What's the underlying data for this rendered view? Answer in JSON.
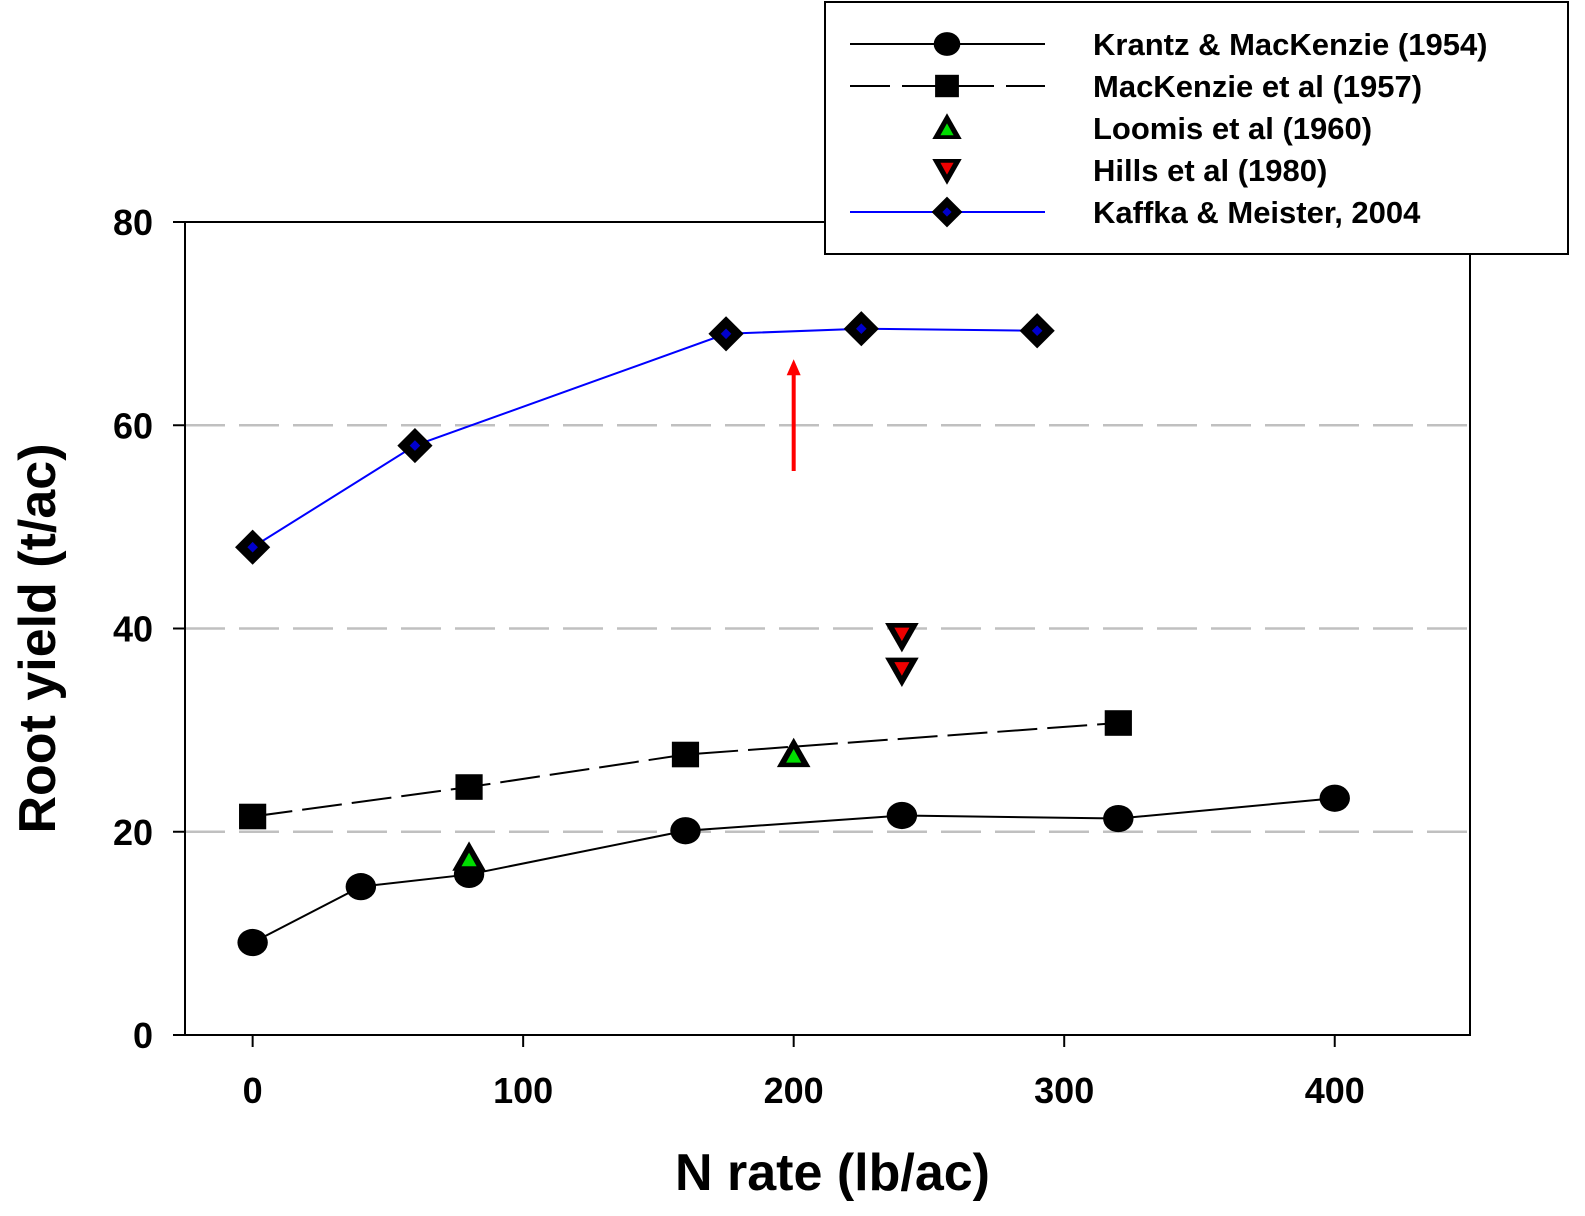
{
  "chart_data": {
    "type": "scatter",
    "xlabel": "N rate (lb/ac)",
    "ylabel": "Root yield (t/ac)",
    "xlim": [
      -25,
      450
    ],
    "ylim": [
      0,
      80
    ],
    "x_ticks": [
      0,
      100,
      200,
      300,
      400
    ],
    "y_ticks": [
      0,
      20,
      40,
      60,
      80
    ],
    "grid": "horizontal dashed",
    "legend_position": "top-right",
    "series": [
      {
        "name": "Krantz & MacKenzie (1954)",
        "marker": "circle",
        "line": "solid",
        "line_color": "#000000",
        "fill": "#000000",
        "points": [
          [
            0,
            9.1
          ],
          [
            40,
            14.6
          ],
          [
            80,
            15.8
          ],
          [
            160,
            20.1
          ],
          [
            240,
            21.6
          ],
          [
            320,
            21.3
          ],
          [
            400,
            23.3
          ]
        ]
      },
      {
        "name": "MacKenzie et al (1957)",
        "marker": "square",
        "line": "dashed",
        "line_color": "#000000",
        "fill": "#000000",
        "points": [
          [
            0,
            21.5
          ],
          [
            80,
            24.4
          ],
          [
            160,
            27.6
          ],
          [
            320,
            30.7
          ]
        ]
      },
      {
        "name": "Loomis et al (1960)",
        "marker": "triangle-up",
        "line": "none",
        "line_color": "#000000",
        "fill": "#00dd00",
        "points": [
          [
            80,
            17.4
          ],
          [
            200,
            27.6
          ]
        ]
      },
      {
        "name": "Hills et al (1980)",
        "marker": "triangle-down",
        "line": "none",
        "line_color": "#000000",
        "fill": "#ee0000",
        "points": [
          [
            240,
            39.3
          ],
          [
            240,
            35.9
          ]
        ]
      },
      {
        "name": "Kaffka & Meister, 2004",
        "marker": "diamond",
        "line": "solid",
        "line_color": "#0000ff",
        "fill": "#0000cc",
        "points": [
          [
            0,
            48.0
          ],
          [
            60,
            58.0
          ],
          [
            175,
            69.0
          ],
          [
            225,
            69.5
          ],
          [
            290,
            69.3
          ]
        ]
      }
    ],
    "annotations": [
      {
        "type": "arrow",
        "color": "#ff0000",
        "x": 200,
        "y_from": 55.5,
        "y_to": 66.5
      }
    ]
  }
}
